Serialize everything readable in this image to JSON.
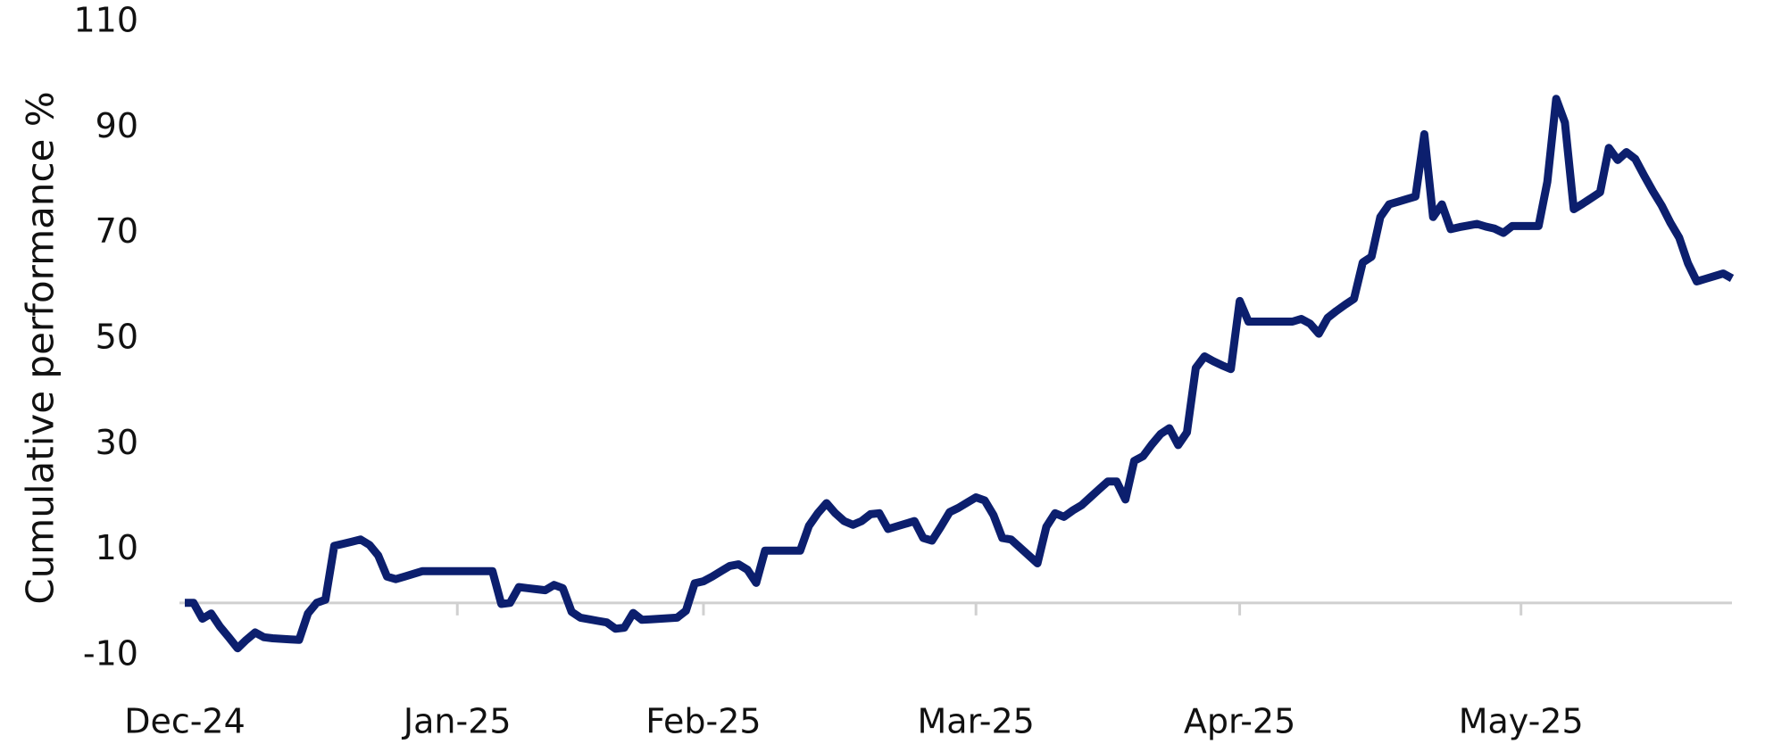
{
  "chart_data": {
    "type": "line",
    "y_label": "Cumulative performance %",
    "color": "#0c1f6e",
    "ylim": [
      -10,
      110
    ],
    "yticks": [
      -10,
      10,
      30,
      50,
      70,
      90,
      110
    ],
    "grid": false,
    "categories": [
      "Dec-24",
      null,
      null,
      null,
      null,
      null,
      null,
      null,
      null,
      null,
      null,
      null,
      null,
      null,
      null,
      null,
      null,
      null,
      null,
      null,
      null,
      null,
      null,
      null,
      null,
      null,
      null,
      null,
      null,
      null,
      null,
      "Jan-25",
      null,
      null,
      null,
      null,
      null,
      null,
      null,
      null,
      null,
      null,
      null,
      null,
      null,
      null,
      null,
      null,
      null,
      null,
      null,
      null,
      null,
      null,
      null,
      null,
      null,
      null,
      null,
      "Feb-25",
      null,
      null,
      null,
      null,
      null,
      null,
      null,
      null,
      null,
      null,
      null,
      null,
      null,
      null,
      null,
      null,
      null,
      null,
      null,
      null,
      null,
      null,
      null,
      null,
      null,
      null,
      null,
      null,
      null,
      null,
      "Mar-25",
      null,
      null,
      null,
      null,
      null,
      null,
      null,
      null,
      null,
      null,
      null,
      null,
      null,
      null,
      null,
      null,
      null,
      null,
      null,
      null,
      null,
      null,
      null,
      null,
      null,
      null,
      null,
      null,
      null,
      "Apr-25",
      null,
      null,
      null,
      null,
      null,
      null,
      null,
      null,
      null,
      null,
      null,
      null,
      null,
      null,
      null,
      null,
      null,
      null,
      null,
      null,
      null,
      null,
      null,
      null,
      null,
      null,
      null,
      null,
      null,
      null,
      null,
      "May-25",
      null,
      null,
      null,
      null,
      null,
      null,
      null,
      null,
      null,
      null,
      null,
      null,
      null,
      null,
      null,
      null,
      null,
      null,
      null,
      null,
      null,
      null,
      null,
      null
    ],
    "values": [
      0,
      0,
      -3,
      -2,
      -4.5,
      -6.5,
      -8.6,
      -7,
      -5.6,
      -6.5,
      -6.7,
      -6.8,
      -6.9,
      -7,
      -2,
      0,
      0.6,
      10.8,
      11.2,
      11.6,
      12,
      11,
      9,
      5,
      4.5,
      5,
      5.5,
      6,
      6,
      6,
      6,
      6,
      6,
      6,
      6,
      6,
      -0.2,
      0,
      3,
      2.8,
      2.6,
      2.4,
      3.4,
      2.8,
      -1.7,
      -2.8,
      -3.1,
      -3.4,
      -3.7,
      -4.9,
      -4.7,
      -1.9,
      -3.2,
      -3.1,
      -3,
      -2.9,
      -2.8,
      -1.5,
      3.7,
      4.1,
      5,
      6,
      7,
      7.3,
      6.3,
      3.8,
      9.9,
      9.9,
      9.9,
      9.9,
      9.9,
      14.6,
      17,
      18.9,
      17,
      15.5,
      14.8,
      15.5,
      16.8,
      17,
      14,
      14.5,
      15,
      15.5,
      12.3,
      11.8,
      14.4,
      17.2,
      18,
      19,
      20,
      19.4,
      16.6,
      12.3,
      12,
      10.5,
      9,
      7.5,
      14.4,
      17,
      16.3,
      17.5,
      18.5,
      20,
      21.5,
      23,
      23,
      19.6,
      26.9,
      27.8,
      30,
      32,
      33.1,
      29.9,
      32.3,
      44.5,
      46.7,
      45.8,
      45,
      44.3,
      57.2,
      53.3,
      53.3,
      53.3,
      53.3,
      53.3,
      53.3,
      53.8,
      52.9,
      51,
      54,
      55.3,
      56.5,
      57.6,
      64.5,
      65.6,
      73.1,
      75.5,
      76,
      76.5,
      77,
      88.8,
      73.1,
      75.5,
      70.8,
      71.2,
      71.5,
      71.8,
      71.3,
      70.9,
      70.1,
      71.4,
      71.4,
      71.4,
      71.4,
      79.8,
      95.5,
      91,
      74.6,
      75.6,
      76.7,
      77.8,
      86.2,
      83.9,
      85.4,
      84.1,
      81,
      78,
      75.3,
      72,
      69.2,
      64.3,
      60.9,
      61.4,
      61.9,
      62.4,
      61.5
    ]
  }
}
